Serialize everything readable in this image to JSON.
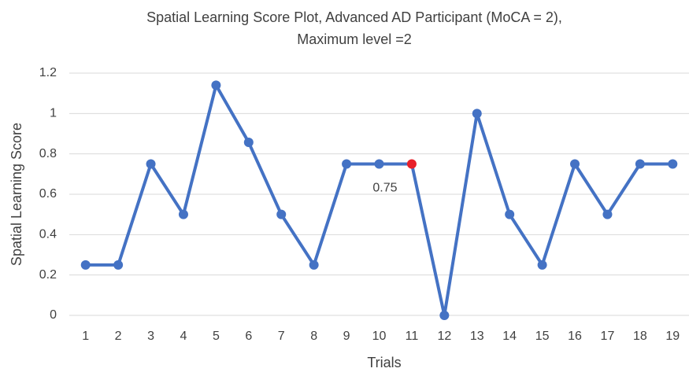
{
  "chart_data": {
    "type": "line",
    "title": [
      "Spatial Learning Score Plot, Advanced AD Participant (MoCA = 2),",
      "Maximum level =2"
    ],
    "x_label": "Trials",
    "y_label": "Spatial Learning Score",
    "categories": [
      "1",
      "2",
      "3",
      "4",
      "5",
      "6",
      "7",
      "8",
      "9",
      "10",
      "11",
      "12",
      "13",
      "14",
      "15",
      "16",
      "17",
      "18",
      "19"
    ],
    "series": [
      {
        "name": "Spatial Learning Score",
        "color": "#4472c4",
        "values": [
          0.25,
          0.25,
          0.75,
          0.5,
          1.14,
          0.857,
          0.5,
          0.25,
          0.75,
          0.75,
          0.75,
          0,
          1,
          0.5,
          0.25,
          0.75,
          0.5,
          0.75,
          0.75
        ],
        "value_labels": [
          null,
          null,
          null,
          null,
          null,
          null,
          null,
          null,
          null,
          null,
          "0.75",
          null,
          null,
          null,
          null,
          null,
          null,
          null,
          null
        ],
        "point_colors": [
          "#4472c4",
          "#4472c4",
          "#4472c4",
          "#4472c4",
          "#4472c4",
          "#4472c4",
          "#4472c4",
          "#4472c4",
          "#4472c4",
          "#4472c4",
          "#e8202a",
          "#4472c4",
          "#4472c4",
          "#4472c4",
          "#4472c4",
          "#4472c4",
          "#4472c4",
          "#4472c4",
          "#4472c4"
        ]
      }
    ],
    "ylim": [
      0,
      1.2
    ],
    "yticks": [
      0,
      0.2,
      0.4,
      0.6,
      0.8,
      1,
      1.2
    ],
    "grid": true
  }
}
